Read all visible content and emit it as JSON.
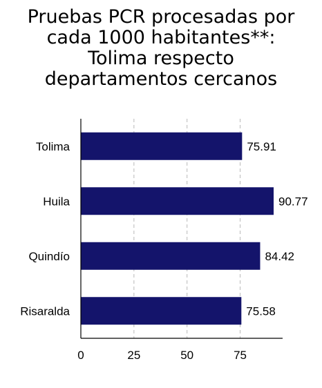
{
  "title_lines": [
    "Pruebas PCR procesadas por",
    "cada 1000 habitantes**:",
    "Tolima respecto",
    "departamentos cercanos"
  ],
  "chart_data": {
    "type": "bar",
    "orientation": "horizontal",
    "title": "Pruebas PCR procesadas por cada 1000 habitantes**: Tolima respecto departamentos cercanos",
    "categories": [
      "Tolima",
      "Huila",
      "Quindío",
      "Risaralda"
    ],
    "values": [
      75.91,
      90.77,
      84.42,
      75.58
    ],
    "value_labels": [
      "75.91",
      "90.77",
      "84.42",
      "75.58"
    ],
    "xlabel": "",
    "ylabel": "",
    "xlim": [
      0,
      95
    ],
    "xticks": [
      0,
      25,
      50,
      75
    ],
    "xtick_labels": [
      "0",
      "25",
      "50",
      "75"
    ],
    "grid": "vertical dashed",
    "bar_color": "#14146b",
    "grid_color": "#b8b8b8"
  }
}
